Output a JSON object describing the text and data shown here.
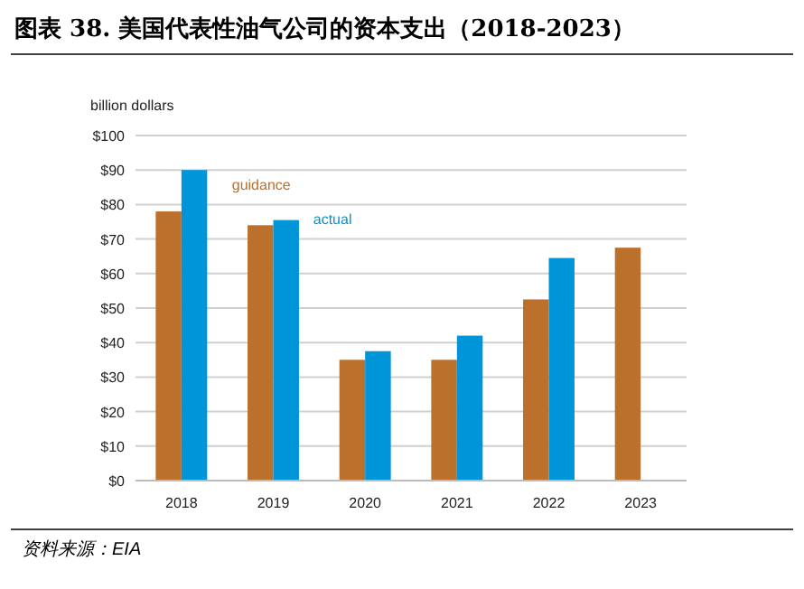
{
  "chart_data": {
    "type": "bar",
    "title": "图表 38. 美国代表性油气公司的资本支出（2018-2023）",
    "ylabel": "billion dollars",
    "categories": [
      "2018",
      "2019",
      "2020",
      "2021",
      "2022",
      "2023"
    ],
    "series": [
      {
        "name": "guidance",
        "color": "#bb702c",
        "values": [
          78,
          74,
          35,
          35,
          52.5,
          67.5
        ]
      },
      {
        "name": "actual",
        "color": "#0095d9",
        "values": [
          90,
          75.5,
          37.5,
          42,
          64.5,
          null
        ]
      }
    ],
    "ylim": [
      0,
      100
    ],
    "yticks": [
      {
        "value": 0,
        "label": "$0"
      },
      {
        "value": 10,
        "label": "$10"
      },
      {
        "value": 20,
        "label": "$20"
      },
      {
        "value": 30,
        "label": "$30"
      },
      {
        "value": 40,
        "label": "$40"
      },
      {
        "value": 50,
        "label": "$50"
      },
      {
        "value": 60,
        "label": "$60"
      },
      {
        "value": 70,
        "label": "$70"
      },
      {
        "value": 80,
        "label": "$80"
      },
      {
        "value": 90,
        "label": "$90"
      },
      {
        "value": 100,
        "label": "$100"
      }
    ],
    "grid": "y",
    "legend": "top left",
    "annotations": [
      "资料来源：EIA"
    ]
  }
}
